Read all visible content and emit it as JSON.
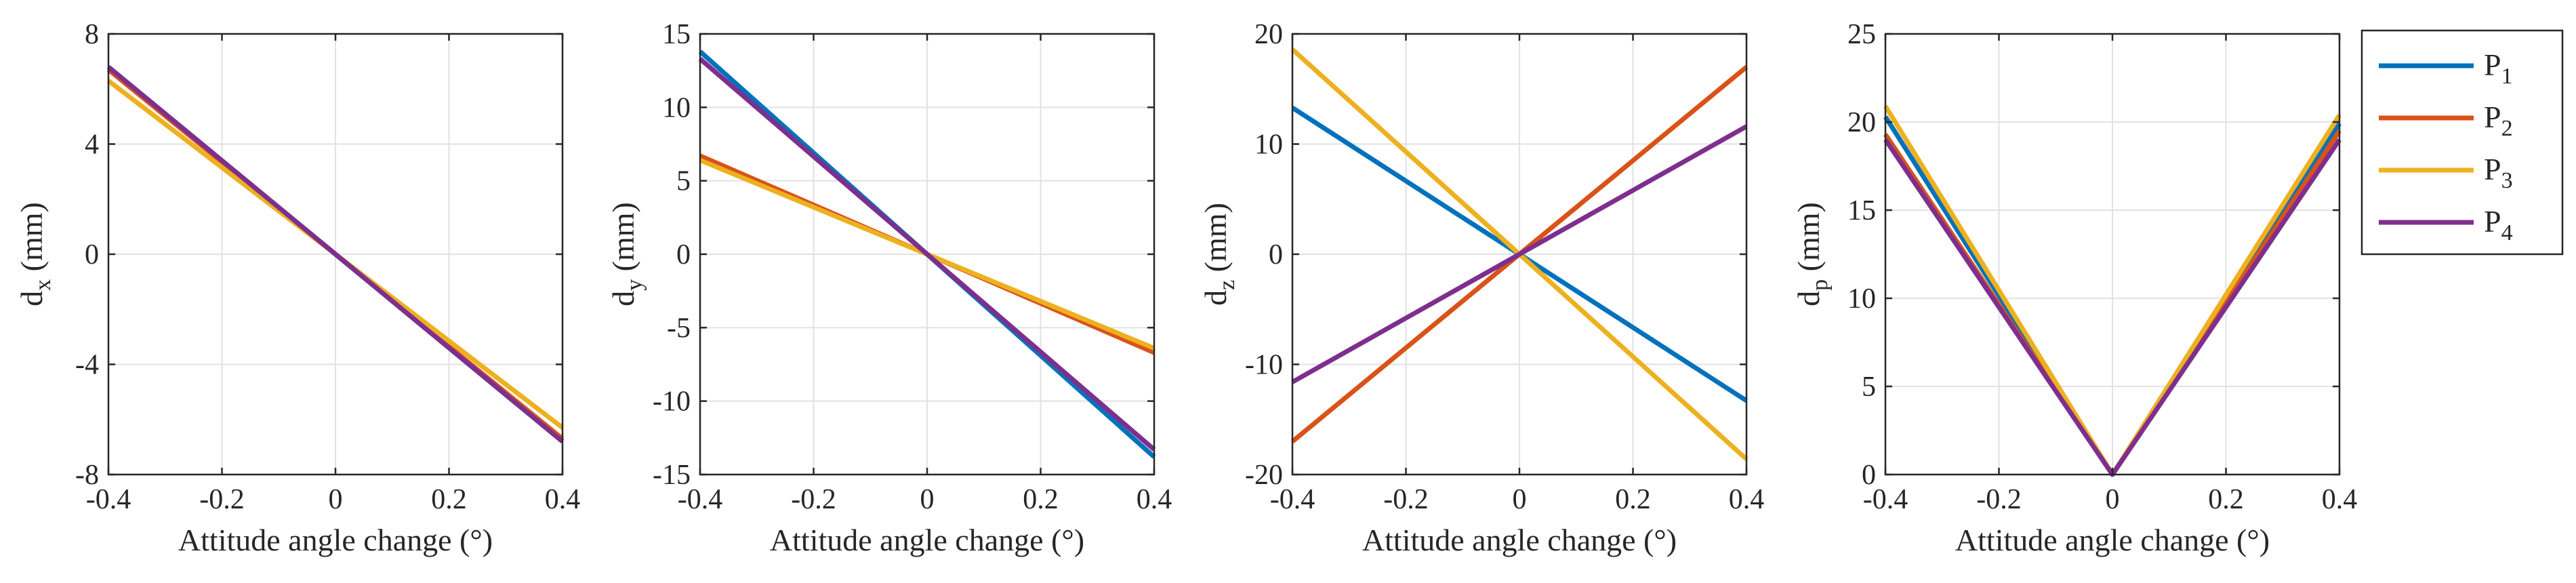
{
  "series_colors": {
    "P1": "#0072BD",
    "P2": "#D95319",
    "P3": "#EDB120",
    "P4": "#7E2F8E"
  },
  "legend": {
    "location": "outside-right",
    "entries": [
      {
        "base": "P",
        "sub": "1"
      },
      {
        "base": "P",
        "sub": "2"
      },
      {
        "base": "P",
        "sub": "3"
      },
      {
        "base": "P",
        "sub": "4"
      }
    ]
  },
  "chart_data": [
    {
      "type": "line",
      "grid": true,
      "xlabel": "Attitude angle change (°)",
      "ylabel": {
        "base": "d",
        "sub": "x",
        "unit": " (mm)"
      },
      "xlim": [
        -0.4,
        0.4
      ],
      "ylim": [
        -8,
        8
      ],
      "xticks": [
        -0.4,
        -0.2,
        0,
        0.2,
        0.4
      ],
      "xtick_labels": [
        "-0.4",
        "-0.2",
        "0",
        "0.2",
        "0.4"
      ],
      "yticks": [
        -8,
        -4,
        0,
        4,
        8
      ],
      "ytick_labels": [
        "-8",
        "-4",
        "0",
        "4",
        "8"
      ],
      "series": [
        {
          "name": "P1",
          "x": [
            -0.4,
            0,
            0.4
          ],
          "y": [
            6.8,
            0,
            -6.8
          ]
        },
        {
          "name": "P2",
          "x": [
            -0.4,
            0,
            0.4
          ],
          "y": [
            6.7,
            0,
            -6.7
          ]
        },
        {
          "name": "P3",
          "x": [
            -0.4,
            0,
            0.4
          ],
          "y": [
            6.3,
            0,
            -6.3
          ]
        },
        {
          "name": "P4",
          "x": [
            -0.4,
            0,
            0.4
          ],
          "y": [
            6.8,
            0,
            -6.8
          ]
        }
      ]
    },
    {
      "type": "line",
      "grid": true,
      "xlabel": "Attitude angle change (°)",
      "ylabel": {
        "base": "d",
        "sub": "y",
        "unit": " (mm)"
      },
      "xlim": [
        -0.4,
        0.4
      ],
      "ylim": [
        -15,
        15
      ],
      "xticks": [
        -0.4,
        -0.2,
        0,
        0.2,
        0.4
      ],
      "xtick_labels": [
        "-0.4",
        "-0.2",
        "0",
        "0.2",
        "0.4"
      ],
      "yticks": [
        -15,
        -10,
        -5,
        0,
        5,
        10,
        15
      ],
      "ytick_labels": [
        "-15",
        "-10",
        "-5",
        "0",
        "5",
        "10",
        "15"
      ],
      "series": [
        {
          "name": "P1",
          "x": [
            -0.4,
            0,
            0.4
          ],
          "y": [
            13.8,
            0,
            -13.8
          ]
        },
        {
          "name": "P2",
          "x": [
            -0.4,
            0,
            0.4
          ],
          "y": [
            6.7,
            0,
            -6.7
          ]
        },
        {
          "name": "P3",
          "x": [
            -0.4,
            0,
            0.4
          ],
          "y": [
            6.4,
            0,
            -6.4
          ]
        },
        {
          "name": "P4",
          "x": [
            -0.4,
            0,
            0.4
          ],
          "y": [
            13.3,
            0,
            -13.3
          ]
        }
      ]
    },
    {
      "type": "line",
      "grid": true,
      "xlabel": "Attitude angle change (°)",
      "ylabel": {
        "base": "d",
        "sub": "z",
        "unit": " (mm)"
      },
      "xlim": [
        -0.4,
        0.4
      ],
      "ylim": [
        -20,
        20
      ],
      "xticks": [
        -0.4,
        -0.2,
        0,
        0.2,
        0.4
      ],
      "xtick_labels": [
        "-0.4",
        "-0.2",
        "0",
        "0.2",
        "0.4"
      ],
      "yticks": [
        -20,
        -10,
        0,
        10,
        20
      ],
      "ytick_labels": [
        "-20",
        "-10",
        "0",
        "10",
        "20"
      ],
      "series": [
        {
          "name": "P1",
          "x": [
            -0.4,
            0,
            0.4
          ],
          "y": [
            13.3,
            0,
            -13.3
          ]
        },
        {
          "name": "P2",
          "x": [
            -0.4,
            0,
            0.4
          ],
          "y": [
            -17.0,
            0,
            17.0
          ]
        },
        {
          "name": "P3",
          "x": [
            -0.4,
            0,
            0.4
          ],
          "y": [
            18.6,
            0,
            -18.6
          ]
        },
        {
          "name": "P4",
          "x": [
            -0.4,
            0,
            0.4
          ],
          "y": [
            -11.6,
            0,
            11.6
          ]
        }
      ]
    },
    {
      "type": "line",
      "grid": true,
      "xlabel": "Attitude angle change (°)",
      "ylabel": {
        "base": "d",
        "sub": "p",
        "unit": " (mm)"
      },
      "xlim": [
        -0.4,
        0.4
      ],
      "ylim": [
        0,
        25
      ],
      "xticks": [
        -0.4,
        -0.2,
        0,
        0.2,
        0.4
      ],
      "xtick_labels": [
        "-0.4",
        "-0.2",
        "0",
        "0.2",
        "0.4"
      ],
      "yticks": [
        0,
        5,
        10,
        15,
        20,
        25
      ],
      "ytick_labels": [
        "0",
        "5",
        "10",
        "15",
        "20",
        "25"
      ],
      "series": [
        {
          "name": "P1",
          "x": [
            -0.4,
            0,
            0.4
          ],
          "y": [
            20.3,
            0,
            19.9
          ]
        },
        {
          "name": "P2",
          "x": [
            -0.4,
            0,
            0.4
          ],
          "y": [
            19.3,
            0,
            19.5
          ]
        },
        {
          "name": "P3",
          "x": [
            -0.4,
            0,
            0.4
          ],
          "y": [
            20.9,
            0,
            20.4
          ]
        },
        {
          "name": "P4",
          "x": [
            -0.4,
            0,
            0.4
          ],
          "y": [
            19.0,
            0,
            19.0
          ]
        }
      ]
    }
  ]
}
